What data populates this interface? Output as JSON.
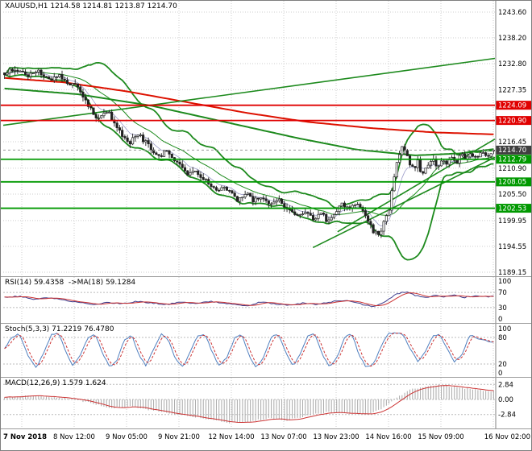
{
  "chart_data": {
    "type": "candlestick",
    "symbol": "XAUUSD",
    "timeframe": "H1",
    "title": "XAUUSD,H1 1214.58 1214.81 1213.87 1214.70",
    "last_candle": {
      "open": 1214.58,
      "high": 1214.81,
      "low": 1213.87,
      "close": 1214.7
    },
    "colors": {
      "background": "#ffffff",
      "grid": "#cdcdcd",
      "candle": "#222222",
      "bull_fill": "#ffffff",
      "bollinger": "#1d8a1d",
      "ma_red": "#dd1100",
      "ma_green": "#1d8a1d",
      "level_red": "#e00000",
      "level_green": "#009900",
      "current_tag": "#3f3f3f",
      "ema_fast": "#9a9ac8",
      "rsi": "#3c3c8c",
      "rsi_signal": "#cc3333",
      "stoch": "#4f7fbf",
      "stoch_signal": "#cc3333",
      "macd_hist": "#aaaaaa",
      "macd_signal": "#cc3333",
      "axis_text": "#000000"
    },
    "x_labels": [
      "7 Nov 2018",
      "8 Nov 12:00",
      "9 Nov 05:00",
      "9 Nov 21:00",
      "12 Nov 14:00",
      "13 Nov 07:00",
      "13 Nov 23:00",
      "14 Nov 16:00",
      "15 Nov 09:00",
      "16 Nov 02:00"
    ],
    "main": {
      "price_axis_range": [
        1188.3,
        1245.95
      ],
      "y_ticks": [
        {
          "label": "1243.60",
          "price": 1243.6
        },
        {
          "label": "1238.20",
          "price": 1238.2
        },
        {
          "label": "1232.80",
          "price": 1232.8
        },
        {
          "label": "1227.35",
          "price": 1227.35
        },
        {
          "label": "1216.45",
          "price": 1216.45
        },
        {
          "label": "1210.90",
          "price": 1210.9
        },
        {
          "label": "1205.50",
          "price": 1205.5
        },
        {
          "label": "1199.95",
          "price": 1199.95
        },
        {
          "label": "1194.55",
          "price": 1194.55
        },
        {
          "label": "1189.15",
          "price": 1189.15
        }
      ],
      "levels": [
        {
          "label": "1224.09",
          "price": 1224.09,
          "color": "red"
        },
        {
          "label": "1220.90",
          "price": 1220.9,
          "color": "red"
        },
        {
          "label": "1212.79",
          "price": 1212.79,
          "color": "green"
        },
        {
          "label": "1208.05",
          "price": 1208.05,
          "color": "green"
        },
        {
          "label": "1202.53",
          "price": 1202.53,
          "color": "green"
        }
      ],
      "current_price": {
        "label": "1214.70",
        "price": 1214.7
      },
      "candle_count": 188,
      "close_path": [
        [
          0,
          1230.5
        ],
        [
          0.02,
          1231.8
        ],
        [
          0.045,
          1230.2
        ],
        [
          0.07,
          1231.2
        ],
        [
          0.09,
          1229.5
        ],
        [
          0.11,
          1230.6
        ],
        [
          0.13,
          1229.0
        ],
        [
          0.15,
          1228.0
        ],
        [
          0.165,
          1225.5
        ],
        [
          0.18,
          1222.5
        ],
        [
          0.195,
          1221.0
        ],
        [
          0.21,
          1222.8
        ],
        [
          0.225,
          1220.5
        ],
        [
          0.24,
          1217.5
        ],
        [
          0.255,
          1216.2
        ],
        [
          0.27,
          1218.0
        ],
        [
          0.285,
          1216.8
        ],
        [
          0.3,
          1215.2
        ],
        [
          0.315,
          1213.2
        ],
        [
          0.33,
          1214.8
        ],
        [
          0.345,
          1213.0
        ],
        [
          0.36,
          1211.3
        ],
        [
          0.375,
          1209.4
        ],
        [
          0.39,
          1210.8
        ],
        [
          0.405,
          1209.0
        ],
        [
          0.42,
          1207.6
        ],
        [
          0.435,
          1206.2
        ],
        [
          0.45,
          1207.4
        ],
        [
          0.465,
          1205.3
        ],
        [
          0.48,
          1204.2
        ],
        [
          0.495,
          1205.4
        ],
        [
          0.51,
          1204.0
        ],
        [
          0.525,
          1205.2
        ],
        [
          0.54,
          1203.6
        ],
        [
          0.555,
          1204.6
        ],
        [
          0.57,
          1203.0
        ],
        [
          0.585,
          1201.8
        ],
        [
          0.6,
          1200.6
        ],
        [
          0.615,
          1202.2
        ],
        [
          0.63,
          1200.2
        ],
        [
          0.645,
          1201.8
        ],
        [
          0.66,
          1199.9
        ],
        [
          0.675,
          1201.6
        ],
        [
          0.69,
          1203.2
        ],
        [
          0.705,
          1202.0
        ],
        [
          0.72,
          1203.6
        ],
        [
          0.735,
          1201.2
        ],
        [
          0.75,
          1198.4
        ],
        [
          0.762,
          1196.9
        ],
        [
          0.774,
          1198.8
        ],
        [
          0.786,
          1202.5
        ],
        [
          0.795,
          1208.5
        ],
        [
          0.805,
          1213.5
        ],
        [
          0.815,
          1215.6
        ],
        [
          0.825,
          1212.6
        ],
        [
          0.835,
          1210.6
        ],
        [
          0.845,
          1212.2
        ],
        [
          0.855,
          1209.3
        ],
        [
          0.865,
          1211.2
        ],
        [
          0.875,
          1212.6
        ],
        [
          0.885,
          1211.4
        ],
        [
          0.895,
          1213.2
        ],
        [
          0.905,
          1212.0
        ],
        [
          0.915,
          1213.6
        ],
        [
          0.925,
          1212.4
        ],
        [
          0.935,
          1214.2
        ],
        [
          0.945,
          1212.6
        ],
        [
          0.955,
          1213.8
        ],
        [
          0.965,
          1212.8
        ],
        [
          0.975,
          1214.2
        ],
        [
          0.985,
          1213.4
        ],
        [
          1,
          1214.7
        ]
      ],
      "overlays": {
        "ma_red": [
          [
            0,
            1229.8
          ],
          [
            0.12,
            1228.9
          ],
          [
            0.25,
            1227.0
          ],
          [
            0.38,
            1224.6
          ],
          [
            0.5,
            1222.4
          ],
          [
            0.62,
            1220.6
          ],
          [
            0.75,
            1219.3
          ],
          [
            0.88,
            1218.4
          ],
          [
            1,
            1218.0
          ]
        ],
        "ma_green": [
          [
            0,
            1227.6
          ],
          [
            0.15,
            1226.4
          ],
          [
            0.3,
            1224.0
          ],
          [
            0.45,
            1220.6
          ],
          [
            0.6,
            1217.2
          ],
          [
            0.72,
            1214.8
          ],
          [
            0.84,
            1213.6
          ],
          [
            0.93,
            1214.0
          ],
          [
            1,
            1214.9
          ]
        ],
        "trendlines": [
          [
            [
              0,
              1219.9
            ],
            [
              1,
              1233.9
            ]
          ],
          [
            [
              0.63,
              1194.3
            ],
            [
              1,
              1213.2
            ]
          ],
          [
            [
              0.68,
              1197.6
            ],
            [
              1,
              1217.0
            ]
          ]
        ]
      }
    },
    "rsi": {
      "label": "RSI(14) 59.4358  ->MA(18) 59.1284",
      "value": 59.4358,
      "ma_value": 59.1284,
      "axis_ticks": [
        {
          "label": "100",
          "value": 100
        },
        {
          "label": "70",
          "value": 70
        },
        {
          "label": "30",
          "value": 30
        },
        {
          "label": "0",
          "value": 0
        }
      ],
      "guide_levels": [
        70,
        30
      ],
      "path": [
        [
          0,
          57
        ],
        [
          0.03,
          60
        ],
        [
          0.06,
          52
        ],
        [
          0.09,
          56
        ],
        [
          0.12,
          50
        ],
        [
          0.15,
          44
        ],
        [
          0.18,
          38
        ],
        [
          0.21,
          44
        ],
        [
          0.24,
          40
        ],
        [
          0.27,
          46
        ],
        [
          0.3,
          42
        ],
        [
          0.33,
          38
        ],
        [
          0.36,
          44
        ],
        [
          0.39,
          40
        ],
        [
          0.42,
          46
        ],
        [
          0.45,
          42
        ],
        [
          0.48,
          38
        ],
        [
          0.5,
          33
        ],
        [
          0.52,
          45
        ],
        [
          0.55,
          40
        ],
        [
          0.58,
          36
        ],
        [
          0.61,
          42
        ],
        [
          0.64,
          38
        ],
        [
          0.67,
          46
        ],
        [
          0.7,
          50
        ],
        [
          0.72,
          42
        ],
        [
          0.74,
          36
        ],
        [
          0.76,
          33
        ],
        [
          0.78,
          48
        ],
        [
          0.8,
          65
        ],
        [
          0.82,
          72
        ],
        [
          0.84,
          62
        ],
        [
          0.86,
          57
        ],
        [
          0.88,
          62
        ],
        [
          0.9,
          58
        ],
        [
          0.92,
          62
        ],
        [
          0.94,
          57
        ],
        [
          0.96,
          61
        ],
        [
          0.98,
          58
        ],
        [
          1,
          59.4
        ]
      ]
    },
    "stoch": {
      "label": "Stoch(5,3,3) 71.2219 76.4780",
      "value": 71.2219,
      "signal_value": 76.478,
      "axis_ticks": [
        {
          "label": "100",
          "value": 100
        },
        {
          "label": "80",
          "value": 80
        },
        {
          "label": "20",
          "value": 20
        },
        {
          "label": "0",
          "value": 0
        }
      ],
      "guide_levels": [
        80,
        20
      ],
      "path": [
        [
          0,
          55
        ],
        [
          0.015,
          80
        ],
        [
          0.03,
          88
        ],
        [
          0.05,
          35
        ],
        [
          0.065,
          12
        ],
        [
          0.08,
          45
        ],
        [
          0.095,
          85
        ],
        [
          0.11,
          90
        ],
        [
          0.125,
          50
        ],
        [
          0.14,
          15
        ],
        [
          0.155,
          40
        ],
        [
          0.17,
          80
        ],
        [
          0.185,
          88
        ],
        [
          0.2,
          45
        ],
        [
          0.215,
          12
        ],
        [
          0.23,
          30
        ],
        [
          0.245,
          75
        ],
        [
          0.26,
          85
        ],
        [
          0.275,
          40
        ],
        [
          0.29,
          15
        ],
        [
          0.305,
          55
        ],
        [
          0.32,
          88
        ],
        [
          0.335,
          75
        ],
        [
          0.35,
          30
        ],
        [
          0.365,
          12
        ],
        [
          0.38,
          50
        ],
        [
          0.395,
          85
        ],
        [
          0.41,
          88
        ],
        [
          0.425,
          45
        ],
        [
          0.44,
          15
        ],
        [
          0.455,
          35
        ],
        [
          0.47,
          78
        ],
        [
          0.485,
          88
        ],
        [
          0.5,
          40
        ],
        [
          0.515,
          12
        ],
        [
          0.53,
          35
        ],
        [
          0.545,
          80
        ],
        [
          0.56,
          88
        ],
        [
          0.575,
          45
        ],
        [
          0.59,
          15
        ],
        [
          0.605,
          45
        ],
        [
          0.62,
          85
        ],
        [
          0.635,
          88
        ],
        [
          0.65,
          40
        ],
        [
          0.665,
          12
        ],
        [
          0.68,
          35
        ],
        [
          0.695,
          80
        ],
        [
          0.71,
          88
        ],
        [
          0.725,
          40
        ],
        [
          0.74,
          12
        ],
        [
          0.755,
          20
        ],
        [
          0.77,
          60
        ],
        [
          0.785,
          88
        ],
        [
          0.8,
          92
        ],
        [
          0.815,
          85
        ],
        [
          0.83,
          55
        ],
        [
          0.845,
          25
        ],
        [
          0.86,
          45
        ],
        [
          0.875,
          82
        ],
        [
          0.89,
          88
        ],
        [
          0.905,
          55
        ],
        [
          0.92,
          25
        ],
        [
          0.935,
          40
        ],
        [
          0.95,
          85
        ],
        [
          0.965,
          80
        ],
        [
          0.98,
          72
        ],
        [
          1,
          71.2
        ]
      ]
    },
    "macd": {
      "label": "MACD(12,26,9) 1.579 1.624",
      "value": 1.579,
      "signal_value": 1.624,
      "axis_ticks": [
        {
          "label": "2.84",
          "value": 2.84
        },
        {
          "label": "0.00",
          "value": 0
        },
        {
          "label": "-2.84",
          "value": -2.84
        }
      ],
      "guide_levels": [
        2.84,
        0,
        -2.84
      ],
      "path": [
        [
          0,
          0.4
        ],
        [
          0.05,
          0.7
        ],
        [
          0.1,
          0.5
        ],
        [
          0.14,
          0.1
        ],
        [
          0.18,
          -0.8
        ],
        [
          0.22,
          -1.6
        ],
        [
          0.26,
          -1.3
        ],
        [
          0.3,
          -2.0
        ],
        [
          0.34,
          -2.6
        ],
        [
          0.38,
          -3.1
        ],
        [
          0.42,
          -3.8
        ],
        [
          0.46,
          -4.4
        ],
        [
          0.5,
          -4.1
        ],
        [
          0.54,
          -3.6
        ],
        [
          0.58,
          -3.9
        ],
        [
          0.62,
          -3.0
        ],
        [
          0.66,
          -2.4
        ],
        [
          0.7,
          -2.6
        ],
        [
          0.74,
          -2.9
        ],
        [
          0.77,
          -1.8
        ],
        [
          0.8,
          0.3
        ],
        [
          0.83,
          1.8
        ],
        [
          0.86,
          2.5
        ],
        [
          0.89,
          2.7
        ],
        [
          0.92,
          2.4
        ],
        [
          0.95,
          2.0
        ],
        [
          0.98,
          1.7
        ],
        [
          1,
          1.58
        ]
      ]
    }
  }
}
